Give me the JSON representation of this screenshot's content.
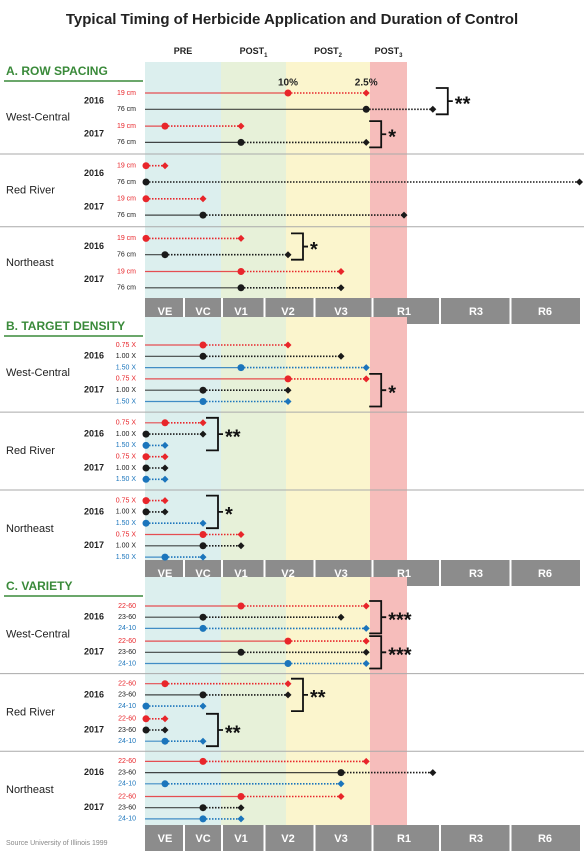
{
  "chart_data": {
    "type": "timeline",
    "title": "Typical Timing of Herbicide Application and Duration of Control",
    "source": "Source University of Illinois 1999",
    "periods": [
      {
        "label": "PRE",
        "color": "#dcefee"
      },
      {
        "label": "POST",
        "sub": "1",
        "color": "#e7f1d9"
      },
      {
        "label": "POST",
        "sub": "2",
        "color": "#fbf5cd"
      },
      {
        "label": "POST",
        "sub": "3",
        "color": "#f6bdbb"
      }
    ],
    "stages": [
      "VE",
      "VC",
      "V1",
      "V2",
      "V3",
      "R1",
      "R3",
      "R6"
    ],
    "sections": [
      {
        "title": "A. ROW SPACING",
        "regions": [
          {
            "name": "West-Central",
            "years": [
              {
                "year": "2016",
                "sig": "**",
                "rows": [
                  {
                    "label": "19 cm",
                    "color": "#e8262b",
                    "start": 3,
                    "end": 4.4,
                    "note": "10%"
                  },
                  {
                    "label": "76 cm",
                    "color": "#1a1a1a",
                    "start": 4.4,
                    "end": 5.4,
                    "note": "2.5%"
                  }
                ]
              },
              {
                "year": "2017",
                "sig": "*",
                "rows": [
                  {
                    "label": "19 cm",
                    "color": "#e8262b",
                    "start": 0,
                    "end": 2
                  },
                  {
                    "label": "76 cm",
                    "color": "#1a1a1a",
                    "start": 2,
                    "end": 4.4
                  }
                ]
              }
            ]
          },
          {
            "name": "Red River",
            "years": [
              {
                "year": "2016",
                "rows": [
                  {
                    "label": "19 cm",
                    "color": "#e8262b",
                    "start": -0.5,
                    "end": 0
                  },
                  {
                    "label": "76 cm",
                    "color": "#1a1a1a",
                    "start": -0.5,
                    "end": 7.5
                  }
                ]
              },
              {
                "year": "2017",
                "rows": [
                  {
                    "label": "19 cm",
                    "color": "#e8262b",
                    "start": -0.5,
                    "end": 1
                  },
                  {
                    "label": "76 cm",
                    "color": "#1a1a1a",
                    "start": 1,
                    "end": 5
                  }
                ]
              }
            ]
          },
          {
            "name": "Northeast",
            "years": [
              {
                "year": "2016",
                "sig": "*",
                "rows": [
                  {
                    "label": "19 cm",
                    "color": "#e8262b",
                    "start": -0.5,
                    "end": 2
                  },
                  {
                    "label": "76 cm",
                    "color": "#1a1a1a",
                    "start": 0,
                    "end": 3
                  }
                ]
              },
              {
                "year": "2017",
                "rows": [
                  {
                    "label": "19 cm",
                    "color": "#e8262b",
                    "start": 2,
                    "end": 4
                  },
                  {
                    "label": "76 cm",
                    "color": "#1a1a1a",
                    "start": 2,
                    "end": 4
                  }
                ]
              }
            ]
          }
        ]
      },
      {
        "title": "B. TARGET DENSITY",
        "regions": [
          {
            "name": "West-Central",
            "years": [
              {
                "year": "2016",
                "rows": [
                  {
                    "label": "0.75 X",
                    "color": "#e8262b",
                    "start": 1,
                    "end": 3
                  },
                  {
                    "label": "1.00 X",
                    "color": "#1a1a1a",
                    "start": 1,
                    "end": 4
                  },
                  {
                    "label": "1.50 X",
                    "color": "#1b75bc",
                    "start": 2,
                    "end": 4.4
                  }
                ]
              },
              {
                "year": "2017",
                "sig": "*",
                "rows": [
                  {
                    "label": "0.75 X",
                    "color": "#e8262b",
                    "start": 3,
                    "end": 4.4
                  },
                  {
                    "label": "1.00 X",
                    "color": "#1a1a1a",
                    "start": 1,
                    "end": 3
                  },
                  {
                    "label": "1.50 X",
                    "color": "#1b75bc",
                    "start": 1,
                    "end": 3
                  }
                ]
              }
            ]
          },
          {
            "name": "Red River",
            "years": [
              {
                "year": "2016",
                "sig": "**",
                "rows": [
                  {
                    "label": "0.75 X",
                    "color": "#e8262b",
                    "start": 0,
                    "end": 1
                  },
                  {
                    "label": "1.00 X",
                    "color": "#1a1a1a",
                    "start": -0.5,
                    "end": 1
                  },
                  {
                    "label": "1.50 X",
                    "color": "#1b75bc",
                    "start": -0.5,
                    "end": 0
                  }
                ]
              },
              {
                "year": "2017",
                "rows": [
                  {
                    "label": "0.75 X",
                    "color": "#e8262b",
                    "start": -0.5,
                    "end": 0
                  },
                  {
                    "label": "1.00 X",
                    "color": "#1a1a1a",
                    "start": -0.5,
                    "end": 0
                  },
                  {
                    "label": "1.50 X",
                    "color": "#1b75bc",
                    "start": -0.5,
                    "end": 0
                  }
                ]
              }
            ]
          },
          {
            "name": "Northeast",
            "years": [
              {
                "year": "2016",
                "sig": "*",
                "rows": [
                  {
                    "label": "0.75 X",
                    "color": "#e8262b",
                    "start": -0.5,
                    "end": 0
                  },
                  {
                    "label": "1.00 X",
                    "color": "#1a1a1a",
                    "start": -0.5,
                    "end": 0
                  },
                  {
                    "label": "1.50 X",
                    "color": "#1b75bc",
                    "start": -0.5,
                    "end": 1
                  }
                ]
              },
              {
                "year": "2017",
                "rows": [
                  {
                    "label": "0.75 X",
                    "color": "#e8262b",
                    "start": 1,
                    "end": 2
                  },
                  {
                    "label": "1.00 X",
                    "color": "#1a1a1a",
                    "start": 1,
                    "end": 2
                  },
                  {
                    "label": "1.50 X",
                    "color": "#1b75bc",
                    "start": 0,
                    "end": 1
                  }
                ]
              }
            ]
          }
        ]
      },
      {
        "title": "C. VARIETY",
        "regions": [
          {
            "name": "West-Central",
            "years": [
              {
                "year": "2016",
                "sig": "***",
                "rows": [
                  {
                    "label": "22-60",
                    "color": "#e8262b",
                    "start": 2,
                    "end": 4.4
                  },
                  {
                    "label": "23-60",
                    "color": "#1a1a1a",
                    "start": 1,
                    "end": 4
                  },
                  {
                    "label": "24-10",
                    "color": "#1b75bc",
                    "start": 1,
                    "end": 4.4
                  }
                ]
              },
              {
                "year": "2017",
                "sig": "***",
                "rows": [
                  {
                    "label": "22-60",
                    "color": "#e8262b",
                    "start": 3,
                    "end": 4.4
                  },
                  {
                    "label": "23-60",
                    "color": "#1a1a1a",
                    "start": 2,
                    "end": 4.4
                  },
                  {
                    "label": "24-10",
                    "color": "#1b75bc",
                    "start": 3,
                    "end": 4.4
                  }
                ]
              }
            ]
          },
          {
            "name": "Red River",
            "years": [
              {
                "year": "2016",
                "sig": "**",
                "rows": [
                  {
                    "label": "22-60",
                    "color": "#e8262b",
                    "start": 0,
                    "end": 3
                  },
                  {
                    "label": "23-60",
                    "color": "#1a1a1a",
                    "start": 1,
                    "end": 3
                  },
                  {
                    "label": "24-10",
                    "color": "#1b75bc",
                    "start": -0.5,
                    "end": 1
                  }
                ]
              },
              {
                "year": "2017",
                "sig": "**",
                "rows": [
                  {
                    "label": "22-60",
                    "color": "#e8262b",
                    "start": -0.5,
                    "end": 0
                  },
                  {
                    "label": "23-60",
                    "color": "#1a1a1a",
                    "start": -0.5,
                    "end": 0
                  },
                  {
                    "label": "24-10",
                    "color": "#1b75bc",
                    "start": 0,
                    "end": 1
                  }
                ]
              }
            ]
          },
          {
            "name": "Northeast",
            "years": [
              {
                "year": "2016",
                "rows": [
                  {
                    "label": "22-60",
                    "color": "#e8262b",
                    "start": 1,
                    "end": 4.4
                  },
                  {
                    "label": "23-60",
                    "color": "#1a1a1a",
                    "start": 4,
                    "end": 5.4
                  },
                  {
                    "label": "24-10",
                    "color": "#1b75bc",
                    "start": 0,
                    "end": 4
                  }
                ]
              },
              {
                "year": "2017",
                "rows": [
                  {
                    "label": "22-60",
                    "color": "#e8262b",
                    "start": 2,
                    "end": 4
                  },
                  {
                    "label": "23-60",
                    "color": "#1a1a1a",
                    "start": 1,
                    "end": 2
                  },
                  {
                    "label": "24-10",
                    "color": "#1b75bc",
                    "start": 1,
                    "end": 2
                  }
                ]
              }
            ]
          }
        ]
      }
    ]
  }
}
